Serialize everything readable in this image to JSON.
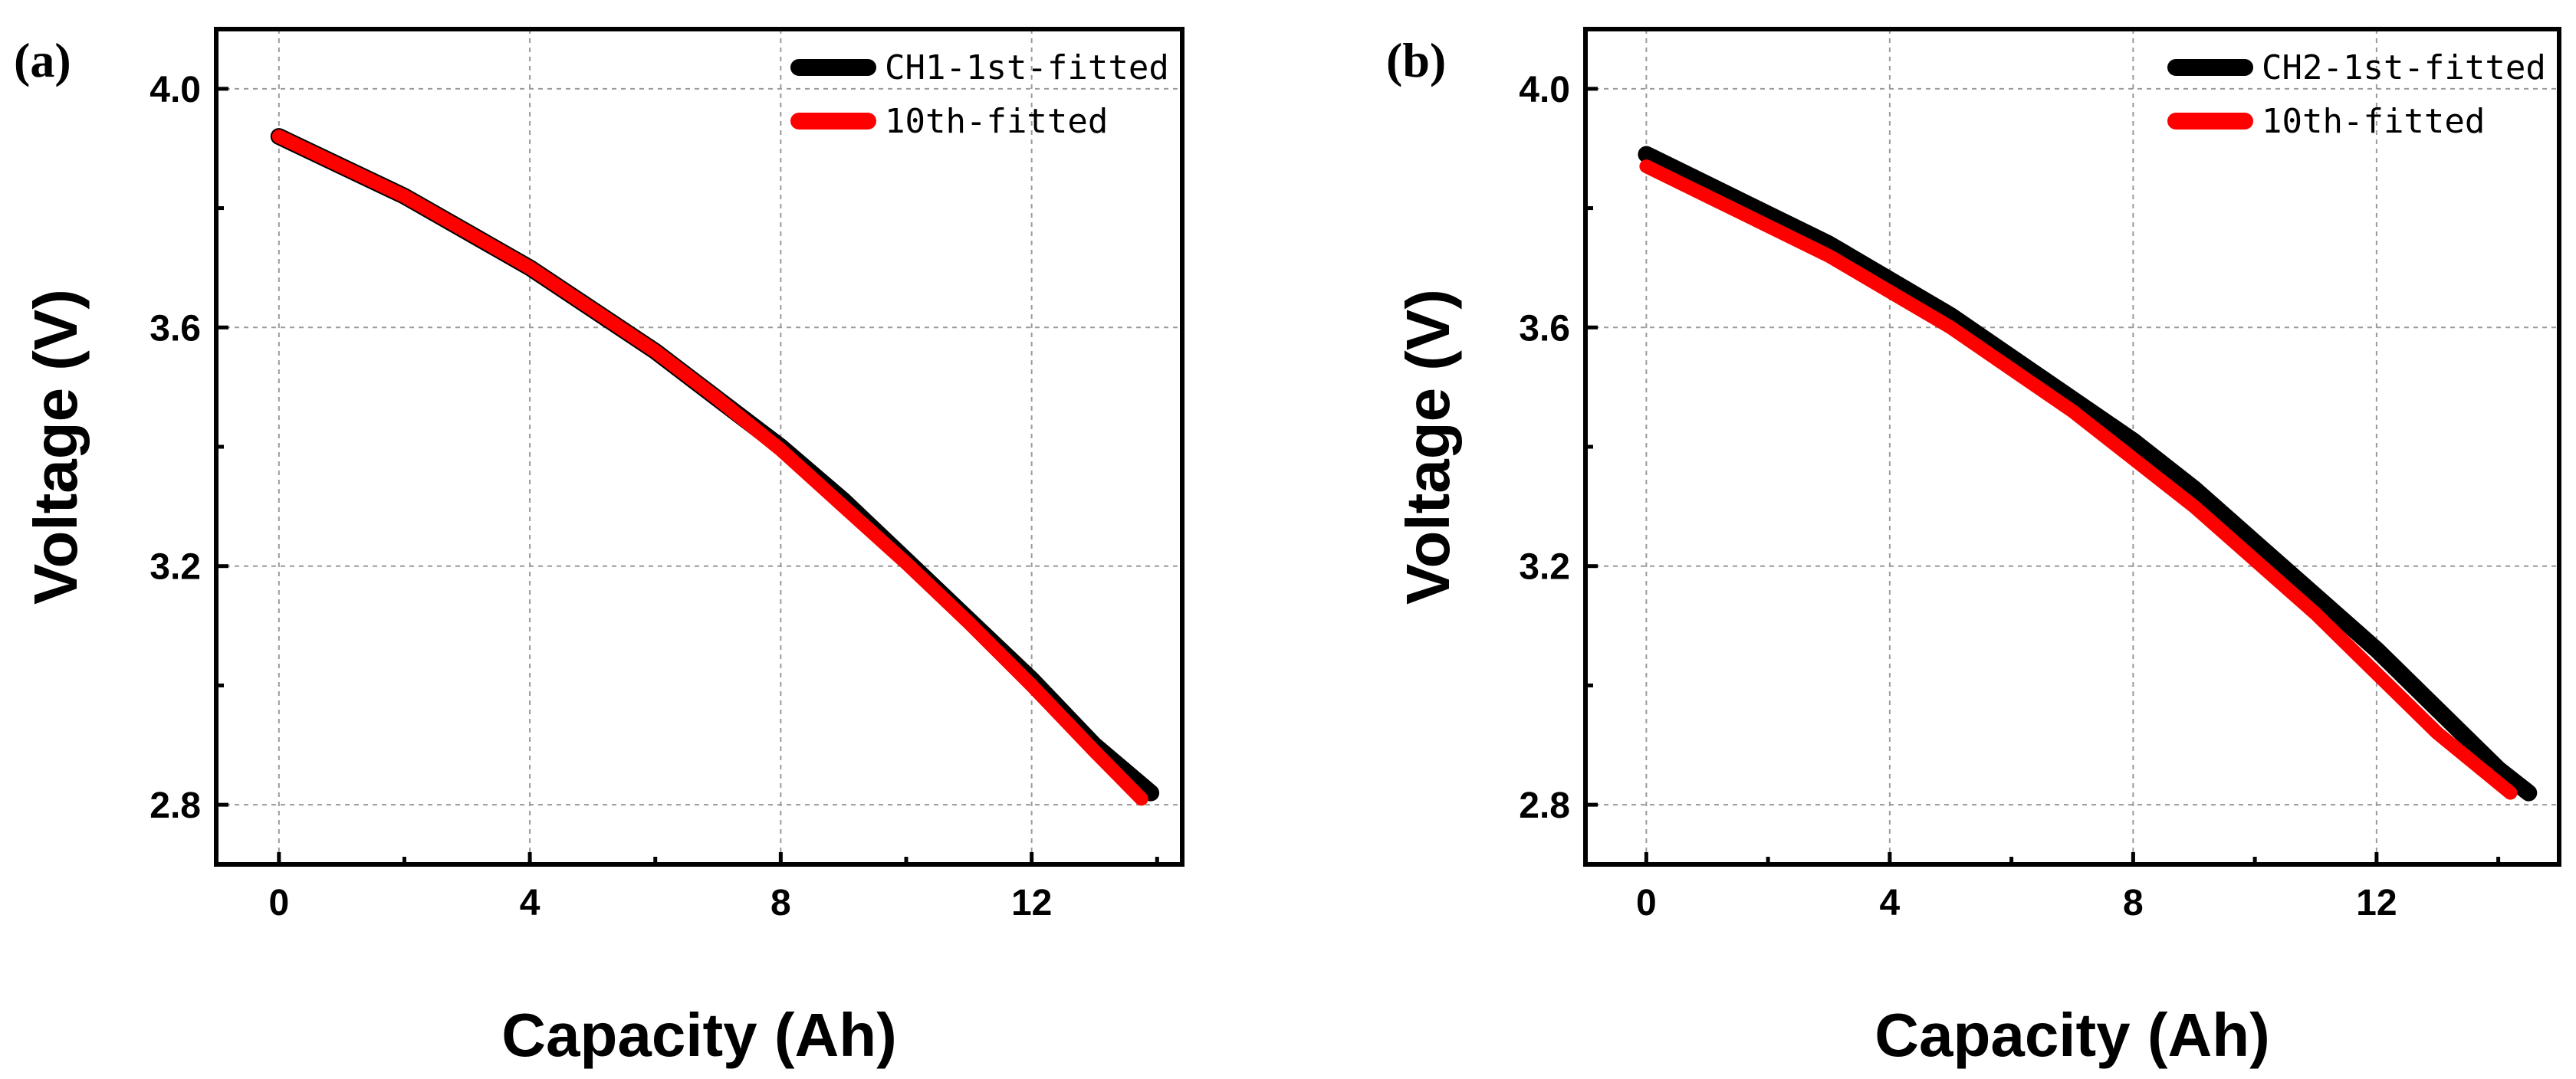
{
  "chart_data": [
    {
      "panel_label": "(a)",
      "type": "line",
      "xlabel": "Capacity (Ah)",
      "ylabel": "Voltage (V)",
      "xlim": [
        -1.0,
        14.4
      ],
      "ylim": [
        2.7,
        4.1
      ],
      "xticks": [
        0,
        4,
        8,
        12
      ],
      "yticks": [
        2.8,
        3.2,
        3.6,
        4.0
      ],
      "x_tick_labels": [
        "0",
        "4",
        "8",
        "12"
      ],
      "y_tick_labels": [
        "2.8",
        "3.2",
        "3.6",
        "4.0"
      ],
      "grid": true,
      "legend_position": "top-right",
      "series": [
        {
          "name": "CH1-1st-fitted",
          "color": "#000000",
          "points": [
            [
              0,
              3.92
            ],
            [
              1,
              3.87
            ],
            [
              2,
              3.82
            ],
            [
              3,
              3.76
            ],
            [
              4,
              3.7
            ],
            [
              5,
              3.63
            ],
            [
              6,
              3.56
            ],
            [
              7,
              3.48
            ],
            [
              8,
              3.4
            ],
            [
              9,
              3.31
            ],
            [
              10,
              3.21
            ],
            [
              11,
              3.11
            ],
            [
              12,
              3.01
            ],
            [
              13,
              2.9
            ],
            [
              13.9,
              2.82
            ]
          ]
        },
        {
          "name": "10th-fitted",
          "color": "#ff0000",
          "points": [
            [
              0,
              3.92
            ],
            [
              1,
              3.87
            ],
            [
              2,
              3.82
            ],
            [
              3,
              3.76
            ],
            [
              4,
              3.7
            ],
            [
              5,
              3.63
            ],
            [
              6,
              3.56
            ],
            [
              7,
              3.48
            ],
            [
              8,
              3.395
            ],
            [
              9,
              3.3
            ],
            [
              10,
              3.205
            ],
            [
              11,
              3.105
            ],
            [
              12,
              3.0
            ],
            [
              13,
              2.89
            ],
            [
              13.75,
              2.81
            ]
          ]
        }
      ]
    },
    {
      "panel_label": "(b)",
      "type": "line",
      "xlabel": "Capacity (Ah)",
      "ylabel": "Voltage (V)",
      "xlim": [
        -1.0,
        15.0
      ],
      "ylim": [
        2.7,
        4.1
      ],
      "xticks": [
        0,
        4,
        8,
        12
      ],
      "yticks": [
        2.8,
        3.2,
        3.6,
        4.0
      ],
      "x_tick_labels": [
        "0",
        "4",
        "8",
        "12"
      ],
      "y_tick_labels": [
        "2.8",
        "3.2",
        "3.6",
        "4.0"
      ],
      "grid": true,
      "legend_position": "top-right",
      "series": [
        {
          "name": "CH2-1st-fitted",
          "color": "#000000",
          "points": [
            [
              0,
              3.89
            ],
            [
              1,
              3.84
            ],
            [
              2,
              3.79
            ],
            [
              3,
              3.74
            ],
            [
              4,
              3.68
            ],
            [
              5,
              3.62
            ],
            [
              6,
              3.55
            ],
            [
              7,
              3.48
            ],
            [
              8,
              3.41
            ],
            [
              9,
              3.33
            ],
            [
              10,
              3.24
            ],
            [
              11,
              3.15
            ],
            [
              12,
              3.06
            ],
            [
              13,
              2.96
            ],
            [
              14,
              2.86
            ],
            [
              14.5,
              2.82
            ]
          ]
        },
        {
          "name": "10th-fitted",
          "color": "#ff0000",
          "points": [
            [
              0,
              3.87
            ],
            [
              1,
              3.82
            ],
            [
              2,
              3.77
            ],
            [
              3,
              3.72
            ],
            [
              4,
              3.66
            ],
            [
              5,
              3.6
            ],
            [
              6,
              3.53
            ],
            [
              7,
              3.46
            ],
            [
              8,
              3.38
            ],
            [
              9,
              3.3
            ],
            [
              10,
              3.21
            ],
            [
              11,
              3.12
            ],
            [
              12,
              3.02
            ],
            [
              13,
              2.92
            ],
            [
              14.2,
              2.82
            ]
          ]
        }
      ]
    }
  ]
}
